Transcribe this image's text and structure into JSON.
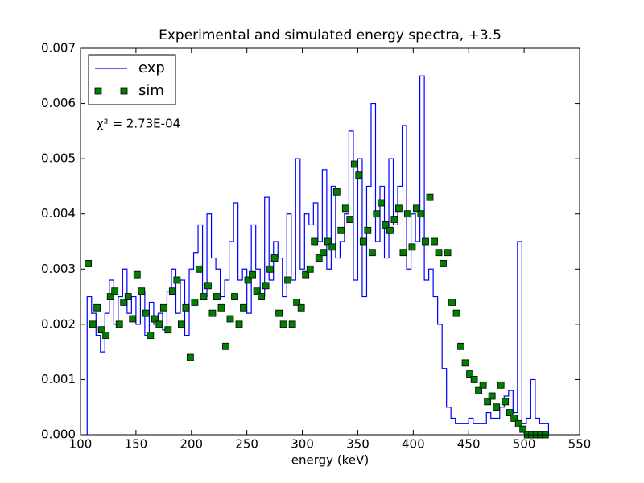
{
  "chart_data": {
    "type": "combo",
    "title": "Experimental and simulated energy spectra, +3.5",
    "xlabel": "energy (keV)",
    "annotation": "χ² = 2.73E-04",
    "xlim": [
      100,
      550
    ],
    "xticks": [
      100,
      150,
      200,
      250,
      300,
      350,
      400,
      450,
      500,
      550
    ],
    "ylim": [
      0,
      0.007
    ],
    "yticks": [
      {
        "value": 0,
        "label": "0.000"
      },
      0.001,
      0.002,
      0.003,
      0.004,
      0.005,
      0.006,
      0.007
    ],
    "legend": "upper left",
    "series": [
      {
        "name": "exp",
        "kind": "step",
        "color": "#0000ff",
        "bins": [
          106,
          110,
          114,
          118,
          122,
          126,
          130,
          134,
          138,
          142,
          146,
          150,
          154,
          158,
          162,
          166,
          170,
          174,
          178,
          182,
          186,
          190,
          194,
          198,
          202,
          206,
          210,
          214,
          218,
          222,
          226,
          230,
          234,
          238,
          242,
          246,
          250,
          254,
          258,
          262,
          266,
          270,
          274,
          278,
          282,
          286,
          290,
          294,
          298,
          302,
          306,
          310,
          314,
          318,
          322,
          326,
          330,
          334,
          338,
          342,
          346,
          350,
          354,
          358,
          362,
          366,
          370,
          374,
          378,
          382,
          386,
          390,
          394,
          398,
          402,
          406,
          410,
          414,
          418,
          422,
          426,
          430,
          434,
          438,
          442,
          446,
          450,
          454,
          458,
          462,
          466,
          470,
          474,
          478,
          482,
          486,
          490,
          494,
          498,
          502,
          506,
          510,
          514,
          518,
          522
        ],
        "values": [
          0.0025,
          0.0022,
          0.0018,
          0.0015,
          0.0022,
          0.0028,
          0.002,
          0.0025,
          0.003,
          0.0022,
          0.0025,
          0.002,
          0.0026,
          0.0018,
          0.0024,
          0.002,
          0.0022,
          0.0019,
          0.0026,
          0.003,
          0.0022,
          0.0028,
          0.0018,
          0.003,
          0.0033,
          0.0038,
          0.0025,
          0.004,
          0.0032,
          0.003,
          0.0025,
          0.0028,
          0.0035,
          0.0042,
          0.0028,
          0.003,
          0.0022,
          0.0038,
          0.003,
          0.0025,
          0.0043,
          0.0028,
          0.0035,
          0.0032,
          0.0025,
          0.004,
          0.0028,
          0.005,
          0.003,
          0.004,
          0.0038,
          0.0042,
          0.0035,
          0.0048,
          0.003,
          0.0045,
          0.0032,
          0.0035,
          0.004,
          0.0055,
          0.0028,
          0.005,
          0.0025,
          0.0045,
          0.006,
          0.0035,
          0.0045,
          0.0032,
          0.005,
          0.0038,
          0.0045,
          0.0056,
          0.003,
          0.004,
          0.0035,
          0.0065,
          0.0028,
          0.003,
          0.0025,
          0.002,
          0.0012,
          0.0005,
          0.0003,
          0.0002,
          0.0002,
          0.0002,
          0.0003,
          0.0002,
          0.0002,
          0.0002,
          0.0004,
          0.0003,
          0.0003,
          0.0005,
          0.0007,
          0.0008,
          0.0004,
          0.0035,
          0.0002,
          0.0003,
          0.001,
          0.0003,
          0.0002,
          0.0002
        ]
      },
      {
        "name": "sim",
        "kind": "scatter",
        "color": "#007f00",
        "x": [
          107,
          111,
          115,
          119,
          123,
          127,
          131,
          135,
          139,
          143,
          147,
          151,
          155,
          159,
          163,
          167,
          171,
          175,
          179,
          183,
          187,
          191,
          195,
          199,
          203,
          207,
          211,
          215,
          219,
          223,
          227,
          231,
          235,
          239,
          243,
          247,
          251,
          255,
          259,
          263,
          267,
          271,
          275,
          279,
          283,
          287,
          291,
          295,
          299,
          303,
          307,
          311,
          315,
          319,
          323,
          327,
          331,
          335,
          339,
          343,
          347,
          351,
          355,
          359,
          363,
          367,
          371,
          375,
          379,
          383,
          387,
          391,
          395,
          399,
          403,
          407,
          411,
          415,
          419,
          423,
          427,
          431,
          435,
          439,
          443,
          447,
          451,
          455,
          459,
          463,
          467,
          471,
          475,
          479,
          483,
          487,
          491,
          495,
          499,
          503,
          507,
          511,
          515,
          519
        ],
        "values": [
          0.0031,
          0.002,
          0.0023,
          0.0019,
          0.0018,
          0.0025,
          0.0026,
          0.002,
          0.0024,
          0.0025,
          0.0021,
          0.0029,
          0.0026,
          0.0022,
          0.0018,
          0.0021,
          0.002,
          0.0023,
          0.0019,
          0.0026,
          0.0028,
          0.002,
          0.0023,
          0.0014,
          0.0024,
          0.003,
          0.0025,
          0.0027,
          0.0022,
          0.0025,
          0.0023,
          0.0016,
          0.0021,
          0.0025,
          0.002,
          0.0023,
          0.0028,
          0.0029,
          0.0026,
          0.0025,
          0.0027,
          0.003,
          0.0032,
          0.0022,
          0.002,
          0.0028,
          0.002,
          0.0024,
          0.0023,
          0.0029,
          0.003,
          0.0035,
          0.0032,
          0.0033,
          0.0035,
          0.0034,
          0.0044,
          0.0037,
          0.0041,
          0.0039,
          0.0049,
          0.0047,
          0.0035,
          0.0037,
          0.0033,
          0.004,
          0.0042,
          0.0038,
          0.0037,
          0.0039,
          0.0041,
          0.0033,
          0.004,
          0.0034,
          0.0041,
          0.004,
          0.0035,
          0.0043,
          0.0035,
          0.0033,
          0.0031,
          0.0033,
          0.0024,
          0.0022,
          0.0016,
          0.0013,
          0.0011,
          0.001,
          0.0008,
          0.0009,
          0.0006,
          0.0007,
          0.0005,
          0.0009,
          0.0006,
          0.0004,
          0.0003,
          0.0002,
          0.0001,
          0,
          0,
          0,
          0,
          0
        ]
      }
    ]
  }
}
